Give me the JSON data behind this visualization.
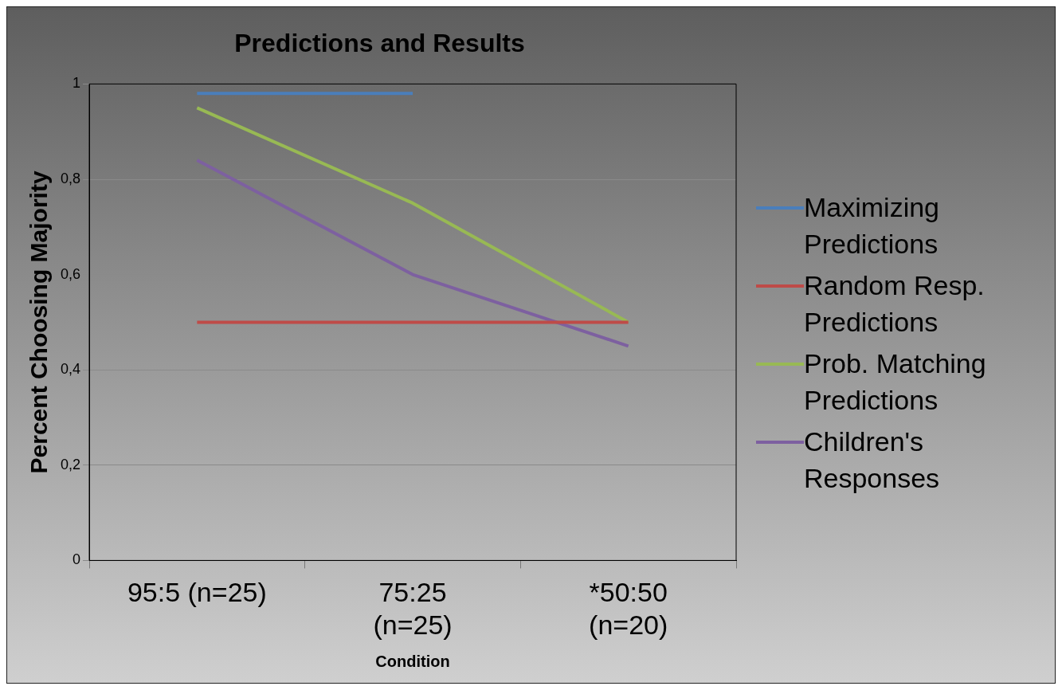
{
  "chart_data": {
    "type": "line",
    "title": "Predictions and Results",
    "xlabel": "Condition",
    "ylabel": "Percent Choosing Majority",
    "categories": [
      "95:5 (n=25)",
      "75:25 (n=25)",
      "*50:50 (n=20)"
    ],
    "series": [
      {
        "name": "Maximizing Predictions",
        "color": "#4a7ebb",
        "values": [
          0.98,
          0.98,
          null
        ]
      },
      {
        "name": "Random Resp. Predictions",
        "color": "#be4b48",
        "values": [
          0.5,
          0.5,
          0.5
        ]
      },
      {
        "name": "Prob. Matching Predictions",
        "color": "#98b954",
        "values": [
          0.95,
          0.75,
          0.5
        ]
      },
      {
        "name": "Children's Responses",
        "color": "#7d60a0",
        "values": [
          0.84,
          0.6,
          0.45
        ]
      }
    ],
    "ylim": [
      0,
      1
    ],
    "yticks": [
      0,
      {
        "value": 0.2,
        "label": "0,2"
      },
      {
        "value": 0.4,
        "label": "0,4"
      },
      {
        "value": 0.6,
        "label": "0,6"
      },
      {
        "value": 0.8,
        "label": "0,8"
      },
      1
    ],
    "grid": "y",
    "legend": "right",
    "marker": "none",
    "line_style": "solid"
  }
}
